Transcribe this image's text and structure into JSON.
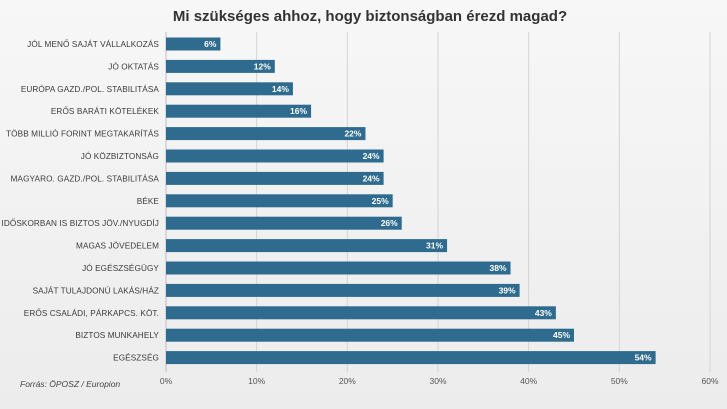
{
  "chart_data": {
    "type": "bar",
    "orientation": "horizontal",
    "title": "Mi szükséges ahhoz, hogy biztonságban érezd magad?",
    "categories": [
      "JÓL MENŐ SAJÁT VÁLLALKOZÁS",
      "JÓ OKTATÁS",
      "EURÓPA GAZD./POL. STABILITÁSA",
      "ERŐS BARÁTI KÖTELÉKEK",
      "TÖBB MILLIÓ FORINT MEGTAKARÍTÁS",
      "JÓ KÖZBIZTONSÁG",
      "MAGYARO. GAZD./POL. STABILITÁSA",
      "BÉKE",
      "IDŐSKORBAN IS BIZTOS JÖV./NYUGDÍJ",
      "MAGAS JÖVEDELEM",
      "JÓ EGÉSZSÉGÜGY",
      "SAJÁT TULAJDONÚ LAKÁS/HÁZ",
      "ERŐS CSALÁDI, PÁRKAPCS. KÖT.",
      "BIZTOS MUNKAHELY",
      "EGÉSZSÉG"
    ],
    "values": [
      6,
      12,
      14,
      16,
      22,
      24,
      24,
      25,
      26,
      31,
      38,
      39,
      43,
      45,
      54
    ],
    "data_labels": [
      "6%",
      "12%",
      "14%",
      "16%",
      "22%",
      "24%",
      "24%",
      "25%",
      "26%",
      "31%",
      "38%",
      "39%",
      "43%",
      "45%",
      "54%"
    ],
    "xlim": [
      0,
      60
    ],
    "x_ticks": [
      0,
      10,
      20,
      30,
      40,
      50,
      60
    ],
    "x_tick_labels": [
      "0%",
      "10%",
      "20%",
      "30%",
      "40%",
      "50%",
      "60%"
    ],
    "xlabel": "",
    "ylabel": "",
    "grid": true,
    "bar_color": "#2e6b8e",
    "source": "Forrás: ÖPOSZ / Europion"
  }
}
